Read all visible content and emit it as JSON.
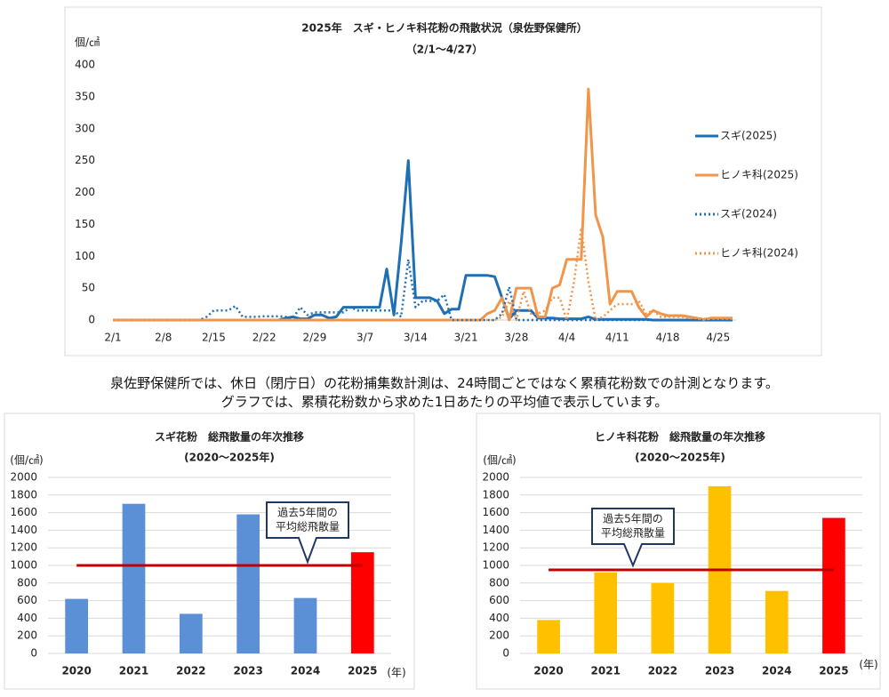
{
  "chart_data": [
    {
      "type": "line",
      "title": "2025年　スギ・ヒノキ科花粉の飛散状況（泉佐野保健所）",
      "subtitle": "（2/1～4/27）",
      "y_label": "個/㎠",
      "categories": [
        "2/1",
        null,
        null,
        null,
        null,
        null,
        null,
        "2/8",
        null,
        null,
        null,
        null,
        null,
        null,
        "2/15",
        null,
        null,
        null,
        null,
        null,
        null,
        "2/22",
        null,
        null,
        null,
        null,
        null,
        null,
        "2/29",
        null,
        null,
        null,
        null,
        null,
        null,
        "3/7",
        null,
        null,
        null,
        null,
        null,
        null,
        "3/14",
        null,
        null,
        null,
        null,
        null,
        null,
        "3/21",
        null,
        null,
        null,
        null,
        null,
        null,
        "3/28",
        null,
        null,
        null,
        null,
        null,
        null,
        "4/4",
        null,
        null,
        null,
        null,
        null,
        null,
        "4/11",
        null,
        null,
        null,
        null,
        null,
        null,
        "4/18",
        null,
        null,
        null,
        null,
        null,
        null,
        "4/25",
        null,
        null
      ],
      "ylim": [
        0,
        400
      ],
      "yticks": [
        0,
        50,
        100,
        150,
        200,
        250,
        300,
        350,
        400
      ],
      "series": [
        {
          "name": "スギ(2025)",
          "color": "#1f6fb5",
          "style": "solid",
          "values": [
            0,
            0,
            0,
            0,
            0,
            0,
            0,
            0,
            0,
            0,
            0,
            0,
            0,
            0,
            0,
            0,
            0,
            0,
            0,
            0,
            0,
            0,
            0,
            0,
            3,
            5,
            2,
            2,
            8,
            8,
            3,
            5,
            20,
            20,
            20,
            20,
            20,
            20,
            80,
            8,
            120,
            250,
            35,
            35,
            35,
            30,
            10,
            17,
            17,
            70,
            70,
            70,
            70,
            68,
            35,
            2,
            15,
            15,
            15,
            3,
            3,
            3,
            2,
            2,
            2,
            2,
            5,
            1,
            1,
            1,
            1,
            1,
            1,
            1,
            1,
            0,
            0,
            0,
            0,
            0,
            0,
            0,
            0,
            0,
            0,
            0,
            0
          ]
        },
        {
          "name": "ヒノキ科(2025)",
          "color": "#f0954a",
          "style": "solid",
          "values": [
            0,
            0,
            0,
            0,
            0,
            0,
            0,
            0,
            0,
            0,
            0,
            0,
            0,
            0,
            0,
            0,
            0,
            0,
            0,
            0,
            0,
            0,
            0,
            0,
            0,
            0,
            0,
            0,
            0,
            0,
            0,
            0,
            0,
            0,
            0,
            0,
            0,
            0,
            0,
            0,
            0,
            0,
            0,
            0,
            0,
            0,
            0,
            0,
            0,
            0,
            0,
            0,
            10,
            15,
            35,
            0,
            50,
            50,
            50,
            5,
            5,
            50,
            55,
            95,
            95,
            95,
            362,
            165,
            130,
            25,
            45,
            45,
            45,
            20,
            5,
            15,
            10,
            7,
            7,
            7,
            5,
            3,
            1,
            3,
            3,
            3,
            3
          ]
        },
        {
          "name": "スギ(2024)",
          "color": "#1f6fb5",
          "style": "dotted",
          "values": [
            0,
            0,
            0,
            0,
            0,
            0,
            0,
            0,
            0,
            0,
            0,
            0,
            0,
            5,
            15,
            15,
            15,
            22,
            5,
            5,
            5,
            6,
            6,
            6,
            5,
            3,
            20,
            8,
            12,
            12,
            12,
            12,
            12,
            20,
            15,
            15,
            15,
            15,
            15,
            15,
            5,
            95,
            20,
            30,
            30,
            30,
            40,
            0,
            0,
            0,
            0,
            0,
            0,
            0,
            10,
            52,
            0,
            0,
            0,
            0,
            0,
            0,
            0,
            0,
            0,
            0,
            0,
            0,
            0,
            0,
            0,
            0,
            0,
            0,
            0,
            0,
            0,
            0,
            0,
            0,
            0,
            0,
            0,
            0,
            0,
            0,
            0
          ]
        },
        {
          "name": "ヒノキ科(2024)",
          "color": "#f0954a",
          "style": "dotted",
          "values": [
            0,
            0,
            0,
            0,
            0,
            0,
            0,
            0,
            0,
            0,
            0,
            0,
            0,
            0,
            0,
            0,
            0,
            0,
            0,
            0,
            0,
            0,
            0,
            0,
            0,
            0,
            0,
            0,
            0,
            0,
            0,
            0,
            0,
            0,
            0,
            0,
            0,
            0,
            0,
            0,
            0,
            0,
            0,
            0,
            0,
            0,
            0,
            0,
            0,
            0,
            0,
            0,
            0,
            0,
            5,
            30,
            0,
            45,
            10,
            10,
            15,
            35,
            35,
            0,
            60,
            145,
            60,
            0,
            5,
            15,
            25,
            25,
            25,
            30,
            10,
            15,
            5,
            5,
            5,
            5,
            3,
            3,
            2,
            2,
            2,
            2,
            2
          ]
        }
      ]
    },
    {
      "type": "bar",
      "title": "スギ花粉　総飛散量の年次推移",
      "subtitle": "(2020～2025年)",
      "y_label": "(個/㎠)",
      "x_label": "(年)",
      "categories": [
        "2020",
        "2021",
        "2022",
        "2023",
        "2024",
        "2025"
      ],
      "values": [
        620,
        1700,
        450,
        1580,
        630,
        1150
      ],
      "colors": [
        "#5b8fd6",
        "#5b8fd6",
        "#5b8fd6",
        "#5b8fd6",
        "#5b8fd6",
        "#ff0000"
      ],
      "average": 1000,
      "average_color": "#c00000",
      "annotation": [
        "過去5年間の",
        "平均総飛散量"
      ],
      "ylim": [
        0,
        2000
      ],
      "yticks": [
        0,
        200,
        400,
        600,
        800,
        1000,
        1200,
        1400,
        1600,
        1800,
        2000
      ],
      "grid": true
    },
    {
      "type": "bar",
      "title": "ヒノキ科花粉　総飛散量の年次推移",
      "subtitle": "(2020～2025年)",
      "y_label": "(個/㎠)",
      "x_label": "(年)",
      "categories": [
        "2020",
        "2021",
        "2022",
        "2023",
        "2024",
        "2025"
      ],
      "values": [
        380,
        920,
        800,
        1900,
        710,
        1540
      ],
      "colors": [
        "#ffc000",
        "#ffc000",
        "#ffc000",
        "#ffc000",
        "#ffc000",
        "#ff0000"
      ],
      "average": 950,
      "average_color": "#c00000",
      "annotation": [
        "過去5年間の",
        "平均総飛散量"
      ],
      "ylim": [
        0,
        2000
      ],
      "yticks": [
        0,
        200,
        400,
        600,
        800,
        1000,
        1200,
        1400,
        1600,
        1800,
        2000
      ],
      "grid": true
    }
  ],
  "notes": [
    "泉佐野保健所では、休日（閉庁日）の花粉捕集数計測は、24時間ごとではなく累積花粉数での計測となります。",
    "グラフでは、累積花粉数から求めた1日あたりの平均値で表示しています。"
  ]
}
